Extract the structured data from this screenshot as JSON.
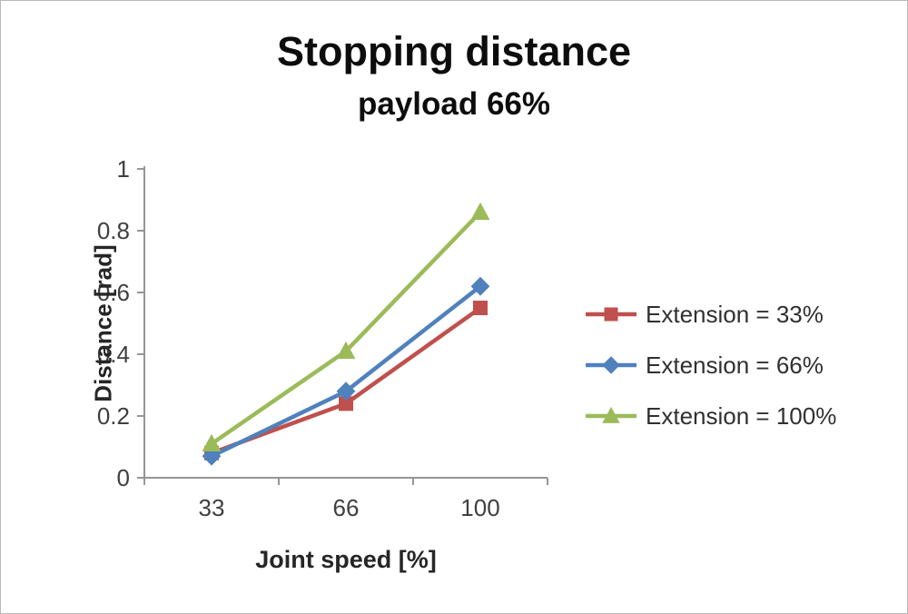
{
  "chart_data": {
    "type": "line",
    "title": "Stopping distance",
    "subtitle": "payload 66%",
    "xlabel": "Joint speed [%]",
    "ylabel": "Distance [rad]",
    "categories": [
      "33",
      "66",
      "100"
    ],
    "yticks": [
      0,
      0.2,
      0.4,
      0.6,
      0.8,
      1
    ],
    "ylim": [
      0,
      1
    ],
    "grid": false,
    "legend_position": "right",
    "series": [
      {
        "name": "Extension = 33%",
        "color": "#c0504d",
        "marker": "square",
        "values": [
          0.08,
          0.24,
          0.55
        ]
      },
      {
        "name": "Extension = 66%",
        "color": "#4f81bd",
        "marker": "diamond",
        "values": [
          0.07,
          0.28,
          0.62
        ]
      },
      {
        "name": "Extension = 100%",
        "color": "#9bbb59",
        "marker": "triangle",
        "values": [
          0.11,
          0.41,
          0.86
        ]
      }
    ]
  },
  "colors": {
    "axis_line": "#969696",
    "tick_text": "#3f3f3f"
  }
}
